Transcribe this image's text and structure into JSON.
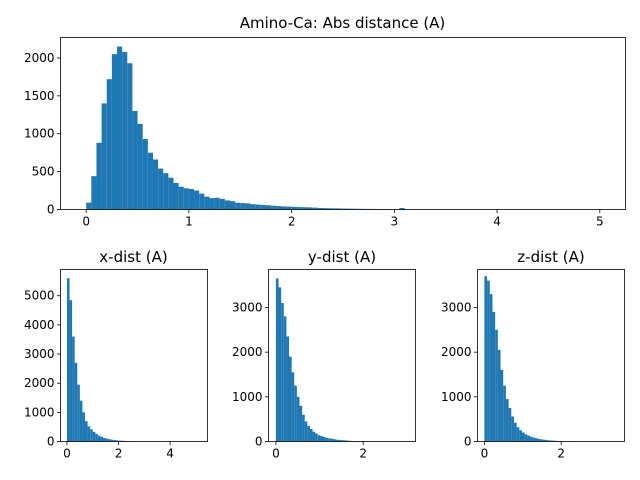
{
  "chart_data": [
    {
      "type": "bar",
      "title": "Amino-Ca: Abs distance (A)",
      "xlabel": "",
      "ylabel": "",
      "xlim": [
        -0.25,
        5.25
      ],
      "ylim": [
        0,
        2270
      ],
      "xticks": [
        0,
        1,
        2,
        3,
        4,
        5
      ],
      "yticks": [
        0,
        500,
        1000,
        1500,
        2000
      ],
      "bin_width": 0.05,
      "bins_start": [
        0.0,
        0.05,
        0.1,
        0.15,
        0.2,
        0.25,
        0.3,
        0.35,
        0.4,
        0.45,
        0.5,
        0.55,
        0.6,
        0.65,
        0.7,
        0.75,
        0.8,
        0.85,
        0.9,
        0.95,
        1.0,
        1.05,
        1.1,
        1.15,
        1.2,
        1.25,
        1.3,
        1.35,
        1.4,
        1.45,
        1.5,
        1.55,
        1.6,
        1.65,
        1.7,
        1.75,
        1.8,
        1.85,
        1.9,
        1.95,
        2.0,
        2.05,
        2.1,
        2.15,
        2.2,
        2.25,
        2.3,
        2.35,
        2.4,
        2.45,
        2.5,
        2.55,
        2.6,
        2.65,
        2.7,
        2.75,
        2.8,
        2.85,
        2.9,
        2.95,
        3.0,
        3.05,
        3.1
      ],
      "values": [
        90,
        440,
        880,
        1400,
        1720,
        2050,
        2150,
        2080,
        1930,
        1300,
        1130,
        930,
        750,
        660,
        540,
        480,
        420,
        350,
        300,
        280,
        270,
        250,
        210,
        170,
        150,
        155,
        140,
        120,
        110,
        90,
        85,
        80,
        70,
        65,
        60,
        55,
        50,
        45,
        40,
        38,
        35,
        32,
        30,
        28,
        25,
        20,
        18,
        16,
        15,
        14,
        12,
        11,
        10,
        9,
        8,
        8,
        7,
        6,
        5,
        5,
        5,
        20,
        3
      ],
      "bar_color": "#1f77b4"
    },
    {
      "type": "bar",
      "title": "x-dist (A)",
      "xlabel": "",
      "ylabel": "",
      "xlim": [
        -0.25,
        5.45
      ],
      "ylim": [
        0,
        5900
      ],
      "xticks": [
        0,
        2,
        4
      ],
      "yticks": [
        0,
        1000,
        2000,
        3000,
        4000,
        5000
      ],
      "bin_width": 0.1,
      "bins_start": [
        0.0,
        0.1,
        0.2,
        0.3,
        0.4,
        0.5,
        0.6,
        0.7,
        0.8,
        0.9,
        1.0,
        1.1,
        1.2,
        1.3,
        1.4,
        1.5,
        1.6,
        1.7,
        1.8,
        1.9,
        2.0,
        2.1,
        2.2,
        2.3,
        2.4,
        2.5
      ],
      "values": [
        5600,
        4850,
        3600,
        2700,
        1950,
        1400,
        1000,
        700,
        520,
        420,
        330,
        260,
        200,
        160,
        120,
        100,
        80,
        60,
        50,
        40,
        30,
        25,
        20,
        15,
        10,
        8
      ],
      "bar_color": "#1f77b4"
    },
    {
      "type": "bar",
      "title": "y-dist (A)",
      "xlabel": "",
      "ylabel": "",
      "xlim": [
        -0.17,
        3.2
      ],
      "ylim": [
        0,
        3850
      ],
      "xticks": [
        0,
        2
      ],
      "yticks": [
        0,
        1000,
        2000,
        3000
      ],
      "bin_width": 0.06,
      "bins_start": [
        0.0,
        0.06,
        0.12,
        0.18,
        0.24,
        0.3,
        0.36,
        0.42,
        0.48,
        0.54,
        0.6,
        0.66,
        0.72,
        0.78,
        0.84,
        0.9,
        0.96,
        1.02,
        1.08,
        1.14,
        1.2,
        1.26,
        1.32,
        1.38,
        1.44,
        1.5,
        1.56,
        1.62,
        1.68,
        1.74,
        1.8,
        1.86,
        1.92,
        1.98,
        2.04
      ],
      "values": [
        3650,
        3450,
        3100,
        2800,
        2350,
        1900,
        1550,
        1250,
        1000,
        800,
        600,
        450,
        350,
        280,
        220,
        180,
        140,
        120,
        100,
        80,
        70,
        60,
        50,
        40,
        35,
        30,
        25,
        20,
        15,
        12,
        10,
        8,
        6,
        5,
        4
      ],
      "bar_color": "#1f77b4"
    },
    {
      "type": "bar",
      "title": "z-dist (A)",
      "xlabel": "",
      "ylabel": "",
      "xlim": [
        -0.18,
        3.65
      ],
      "ylim": [
        0,
        3850
      ],
      "xticks": [
        0,
        2
      ],
      "yticks": [
        0,
        1000,
        2000,
        3000
      ],
      "bin_width": 0.07,
      "bins_start": [
        0.0,
        0.07,
        0.14,
        0.21,
        0.28,
        0.35,
        0.42,
        0.49,
        0.56,
        0.63,
        0.7,
        0.77,
        0.84,
        0.91,
        0.98,
        1.05,
        1.12,
        1.19,
        1.26,
        1.33,
        1.4,
        1.47,
        1.54,
        1.61,
        1.68,
        1.75,
        1.82,
        1.89,
        1.96,
        2.03,
        2.1,
        2.17,
        2.24
      ],
      "values": [
        3700,
        3600,
        3300,
        2900,
        2500,
        2050,
        1600,
        1250,
        950,
        750,
        560,
        420,
        320,
        250,
        200,
        160,
        130,
        105,
        85,
        70,
        55,
        45,
        38,
        30,
        25,
        20,
        16,
        12,
        9,
        7,
        5,
        4,
        3
      ],
      "bar_color": "#1f77b4"
    }
  ]
}
